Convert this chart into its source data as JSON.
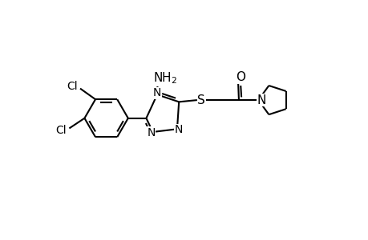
{
  "background_color": "#ffffff",
  "line_color": "#000000",
  "line_width": 1.5,
  "font_size": 10,
  "figsize": [
    4.6,
    3.0
  ],
  "dpi": 100,
  "xlim": [
    0,
    10
  ],
  "ylim": [
    0,
    6.5
  ]
}
